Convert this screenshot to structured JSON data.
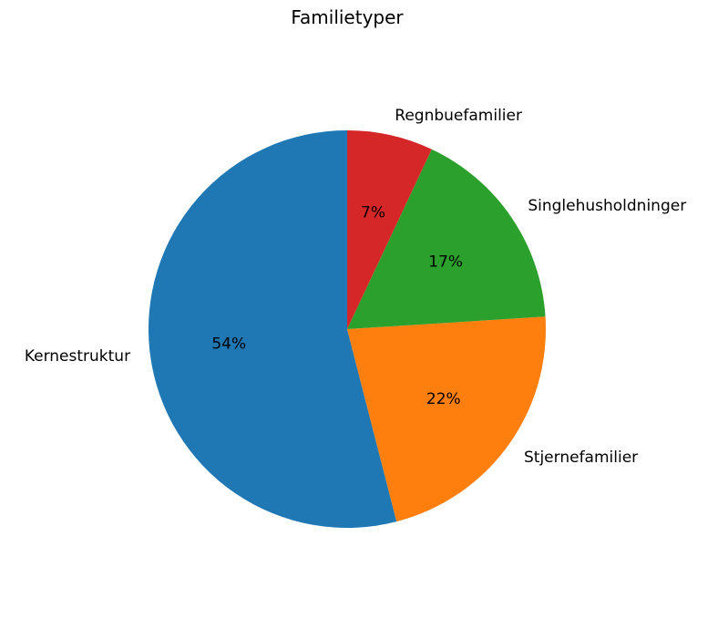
{
  "chart_data": {
    "type": "pie",
    "title": "Familietyper",
    "start_angle_deg": 90,
    "direction": "counterclockwise",
    "slices": [
      {
        "label": "Kernestruktur",
        "value": 54,
        "pct_label": "54%",
        "color": "#1f77b4"
      },
      {
        "label": "Stjernefamilier",
        "value": 22,
        "pct_label": "22%",
        "color": "#ff7f0e"
      },
      {
        "label": "Singlehusholdninger",
        "value": 17,
        "pct_label": "17%",
        "color": "#2ca02c"
      },
      {
        "label": "Regnbuefamilier",
        "value": 7,
        "pct_label": "7%",
        "color": "#d62728"
      }
    ]
  }
}
